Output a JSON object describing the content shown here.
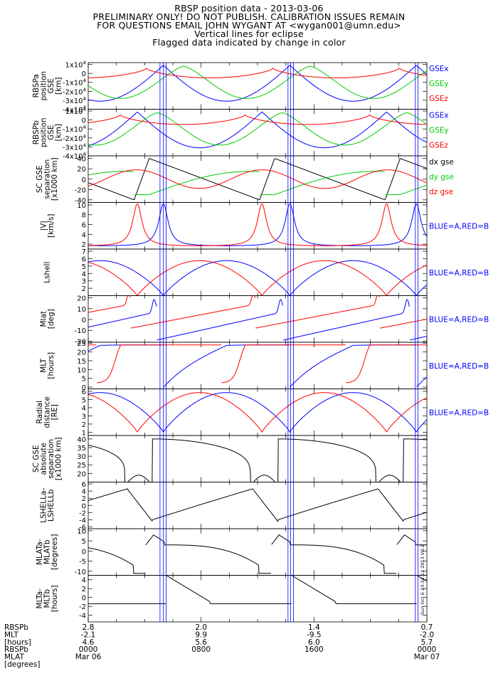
{
  "header": {
    "title": "RBSP position data - 2013-03-06",
    "line2": "PRELIMINARY ONLY! DO NOT PUBLISH. CALIBRATION ISSUES REMAIN",
    "line3": "FOR QUESTIONS EMAIL JOHN WYGANT AT <wygan001@umn.edu>",
    "line4": "Vertical lines for eclipse",
    "line5": "Flagged data indicated by change in color"
  },
  "colors": {
    "blue": "#0000ff",
    "green": "#00cc00",
    "red": "#ff0000",
    "black": "#000000",
    "eclipse": "#0000ff"
  },
  "chart_data": [
    {
      "type": "line",
      "ylabel": [
        "RBSPa",
        "position",
        "GSE",
        "[km]"
      ],
      "yticks": [
        "1x10^4",
        "0",
        "-1x10^4",
        "-2x10^4",
        "-3x10^4",
        "-4x10^4"
      ],
      "yrange": [
        -40000,
        12000
      ],
      "series": [
        {
          "name": "GSEx",
          "color": "blue"
        },
        {
          "name": "GSEy",
          "color": "green"
        },
        {
          "name": "GSEz",
          "color": "red"
        }
      ]
    },
    {
      "type": "line",
      "ylabel": [
        "RBSPb",
        "position",
        "GSE",
        "[km]"
      ],
      "yticks": [
        "1x10^4",
        "0",
        "-1x10^4",
        "-2x10^4",
        "-3x10^4",
        "-4x10^4"
      ],
      "yrange": [
        -40000,
        12000
      ],
      "series": [
        {
          "name": "GSEx",
          "color": "blue"
        },
        {
          "name": "GSEy",
          "color": "green"
        },
        {
          "name": "GSEz",
          "color": "red"
        }
      ]
    },
    {
      "type": "line",
      "ylabel": [
        "SC GSE",
        "separation",
        "[x1000 km]"
      ],
      "yticks": [
        "40",
        "20",
        "0",
        "-20",
        "-40"
      ],
      "yrange": [
        -45,
        45
      ],
      "series": [
        {
          "name": "dx gse",
          "color": "black"
        },
        {
          "name": "dy gse",
          "color": "green"
        },
        {
          "name": "dz gse",
          "color": "red"
        }
      ]
    },
    {
      "type": "line",
      "ylabel": [
        "|V|",
        "[km/s]"
      ],
      "yticks": [
        "10",
        "8",
        "6",
        "4",
        "2"
      ],
      "yrange": [
        1,
        10.5
      ],
      "legend": "BLUE=A,RED=B"
    },
    {
      "type": "line",
      "ylabel": [
        "Lshell"
      ],
      "yticks": [
        "7",
        "6",
        "5",
        "4",
        "3",
        "2"
      ],
      "yrange": [
        1,
        7.3
      ],
      "legend": "BLUE=A,RED=B"
    },
    {
      "type": "line",
      "ylabel": [
        "Mlat",
        "[deg]"
      ],
      "yticks": [
        "20",
        "10",
        "0",
        "-10",
        "-20"
      ],
      "yrange": [
        -21,
        22
      ],
      "legend": "BLUE=A,RED=B"
    },
    {
      "type": "line",
      "ylabel": [
        "MLT",
        "[hours]"
      ],
      "yticks": [
        "25",
        "20",
        "15",
        "10",
        "5",
        "0"
      ],
      "yrange": [
        -1,
        25.5
      ],
      "legend": "BLUE=A,RED=B"
    },
    {
      "type": "line",
      "ylabel": [
        "Radial",
        "distance",
        "[RE]"
      ],
      "yticks": [
        "6",
        "5",
        "4",
        "3",
        "2",
        "1"
      ],
      "yrange": [
        0.6,
        6.3
      ],
      "legend": "BLUE=A,RED=B"
    },
    {
      "type": "line",
      "ylabel": [
        "SC GSE",
        "absolute",
        "separation",
        "[x1000 km]"
      ],
      "yticks": [
        "40",
        "35",
        "30",
        "25",
        "20"
      ],
      "yrange": [
        15,
        42
      ]
    },
    {
      "type": "line",
      "ylabel": [
        "LSHELLa-",
        "LSHELLb"
      ],
      "yticks": [
        "6",
        "4",
        "2",
        "0",
        "-2",
        "-4",
        "-6"
      ],
      "yrange": [
        -6.5,
        6.5
      ]
    },
    {
      "type": "line",
      "ylabel": [
        "MLATa-",
        "MLATb",
        "[degrees]"
      ],
      "yticks": [
        "10",
        "5",
        "0",
        "-5",
        "-10"
      ],
      "yrange": [
        -12,
        11
      ]
    },
    {
      "type": "line",
      "ylabel": [
        "MLTa-",
        "MLTb",
        "[hours]"
      ],
      "yticks": [
        "4",
        "2",
        "0",
        "-2",
        "-4"
      ],
      "yrange": [
        -5.5,
        5
      ]
    }
  ],
  "footer": {
    "row_labels": [
      "RBSPb",
      "MLT",
      "[hours]",
      "RBSPb",
      "MLAT",
      "[degrees]"
    ],
    "columns": [
      {
        "lines": [
          "2.8",
          "-2.1",
          "4.6",
          "0000",
          "Mar 06"
        ]
      },
      {
        "lines": [
          "2.0",
          "9.9",
          "5.6",
          "0800",
          ""
        ]
      },
      {
        "lines": [
          "1.4",
          "-9.5",
          "6.0",
          "1600",
          ""
        ]
      },
      {
        "lines": [
          "0.7",
          "-2.0",
          "5.7",
          "0000",
          "Mar 07"
        ]
      }
    ],
    "stamp": "Sun Oct  6 23:31:12 2013 V0.2"
  }
}
